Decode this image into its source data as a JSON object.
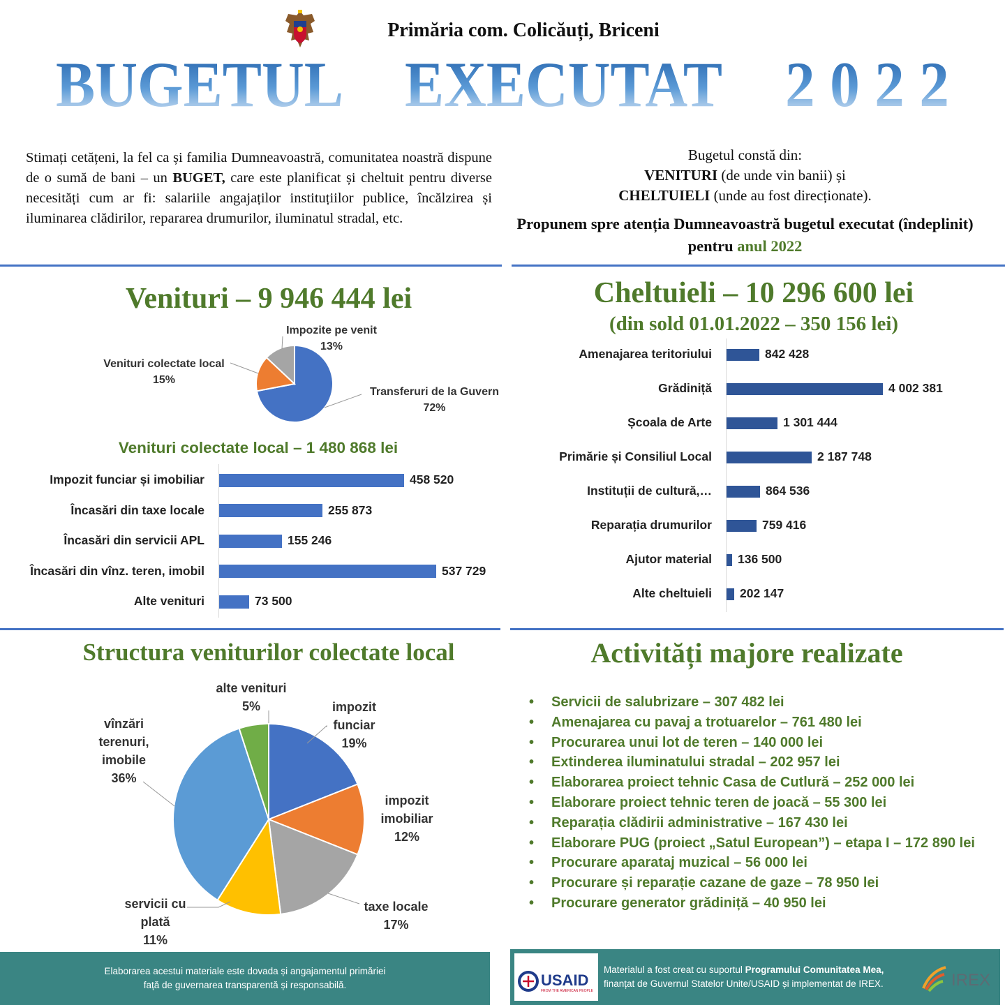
{
  "header": {
    "emblem_icon": "moldova-coat-of-arms-icon",
    "org": "Primăria com. Colicăuți, Briceni",
    "title_word1": "BUGETUL",
    "title_word2": "EXECUTAT",
    "title_year": "2 0 2 2"
  },
  "intro": {
    "left_part1": "Stimați cetățeni, la fel ca și familia Dumneavoastră, comunitatea noastră dispune de o sumă de bani – un ",
    "left_bold": "BUGET,",
    "left_part2": " care este planificat și cheltuit pentru diverse necesități cum ar fi: salariile angajaților instituțiilor publice, încălzirea și iluminarea clădirilor, repararea drumurilor, iluminatul stradal, etc.",
    "right_line1": "Bugetul constă din:",
    "right_venituri": "VENITURI",
    "right_venituri_desc": " (de unde vin banii) și",
    "right_cheltuieli": "CHELTUIELI",
    "right_cheltuieli_desc": " (unde au fost direcționate).",
    "propose_text": "Propunem spre atenția Dumneavoastră bugetul executat (îndeplinit) pentru ",
    "propose_year": "anul 2022"
  },
  "venituri": {
    "title": "Venituri – 9 946 444 lei"
  },
  "cheltuieli": {
    "title": "Cheltuieli – 10 296 600 lei",
    "subtitle": "(din sold 01.01.2022 – 350 156 lei)"
  },
  "local_title": "Venituri colectate local – 1 480 868 lei",
  "structura_title": "Structura veniturilor colectate local",
  "activitati_title": "Activități majore realizate",
  "activitati": [
    "Servicii de salubrizare – 307 482 lei",
    "Amenajarea cu pavaj a trotuarelor – 761 480 lei",
    "Procurarea unui lot de teren – 140 000 lei",
    "Extinderea iluminatului stradal – 202 957 lei",
    "Elaborarea proiect tehnic Casa de Cutlură – 252 000 lei",
    "Elaborare proiect tehnic teren de joacă – 55 300 lei",
    "Reparația clădirii administrative – 167 430 lei",
    "Elaborare PUG (proiect „Satul European”) – etapa I – 172 890 lei",
    "Procurare aparataj muzical – 56 000 lei",
    "Procurare și reparație cazane de gaze – 78 950 lei",
    "Procurare generator grădiniță – 40 950 lei"
  ],
  "footer": {
    "left_line1": "Elaborarea acestui materiale este dovada și angajamentul primăriei",
    "left_line2": "față de guvernarea transparentă și responsabilă.",
    "right_prefix": "Materialul a fost creat cu suportul ",
    "right_bold": "Programului Comunitatea Mea,",
    "right_suffix": " finanțat de Guvernul Statelor Unite/USAID și implementat de IREX.",
    "usaid_logo": "USAID",
    "usaid_tagline": "FROM THE AMERICAN PEOPLE",
    "irex_logo": "IREX"
  },
  "chart_data": [
    {
      "type": "pie",
      "id": "venituri_pie",
      "labels": [
        "Transferuri de la Guvern",
        "Venituri colectate local",
        "Impozite pe venit"
      ],
      "values": [
        72,
        15,
        13
      ],
      "value_labels": [
        "72%",
        "15%",
        "13%"
      ],
      "colors": [
        "#4472c4",
        "#ed7d31",
        "#a5a5a5"
      ]
    },
    {
      "type": "bar",
      "orientation": "horizontal",
      "id": "venituri_locale",
      "categories": [
        "Impozit funciar și imobiliar",
        "Încasări din taxe locale",
        "Încasări din servicii APL",
        "Încasări din vînz. teren, imobil",
        "Alte venituri"
      ],
      "values": [
        458520,
        255873,
        155246,
        537729,
        73500
      ],
      "value_labels": [
        "458 520",
        "255 873",
        "155 246",
        "537 729",
        "73 500"
      ],
      "color": "#4472c4"
    },
    {
      "type": "bar",
      "orientation": "horizontal",
      "id": "cheltuieli",
      "categories": [
        "Amenajarea teritoriului",
        "Grădiniță",
        "Școala de Arte",
        "Primărie și Consiliul Local",
        "Instituții de cultură,…",
        "Reparația drumurilor",
        "Ajutor material",
        "Alte cheltuieli"
      ],
      "values": [
        842428,
        4002381,
        1301444,
        2187748,
        864536,
        759416,
        136500,
        202147
      ],
      "value_labels": [
        "842 428",
        "4 002 381",
        "1 301 444",
        "2 187 748",
        "864 536",
        "759 416",
        "136 500",
        "202 147"
      ],
      "color": "#2f5597"
    },
    {
      "type": "pie",
      "id": "structura_pie",
      "labels": [
        "impozit funciar",
        "impozit imobiliar",
        "taxe locale",
        "servicii cu plată",
        "vînzări terenuri, imobile",
        "alte venituri"
      ],
      "values": [
        19,
        12,
        17,
        11,
        36,
        5
      ],
      "value_labels": [
        "19%",
        "12%",
        "17%",
        "11%",
        "36%",
        "5%"
      ],
      "colors": [
        "#4472c4",
        "#ed7d31",
        "#a5a5a5",
        "#ffc000",
        "#5b9bd5",
        "#70ad47"
      ]
    }
  ]
}
